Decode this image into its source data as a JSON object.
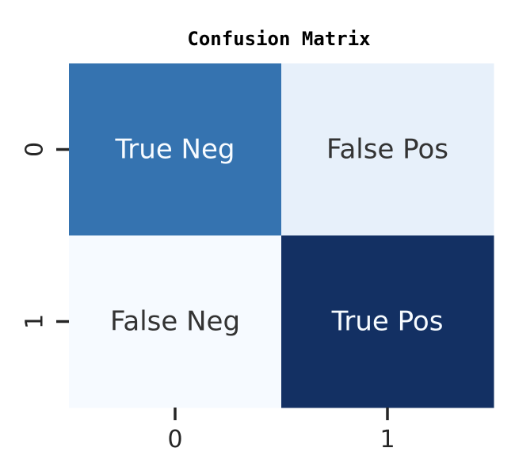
{
  "chart_data": {
    "type": "heatmap",
    "title": "Confusion Matrix",
    "x_categories": [
      "0",
      "1"
    ],
    "y_categories": [
      "0",
      "1"
    ],
    "cells": [
      {
        "row": 0,
        "col": 0,
        "label": "True Neg",
        "color": "#3573b0",
        "text_color": "#f7fbff"
      },
      {
        "row": 0,
        "col": 1,
        "label": "False Pos",
        "color": "#e7f0fa",
        "text_color": "#333333"
      },
      {
        "row": 1,
        "col": 0,
        "label": "False Neg",
        "color": "#f6faff",
        "text_color": "#333333"
      },
      {
        "row": 1,
        "col": 1,
        "label": "True Pos",
        "color": "#133063",
        "text_color": "#f7fbff"
      }
    ],
    "colormap": "Blues",
    "colorbar": false,
    "xlabel": "",
    "ylabel": ""
  }
}
